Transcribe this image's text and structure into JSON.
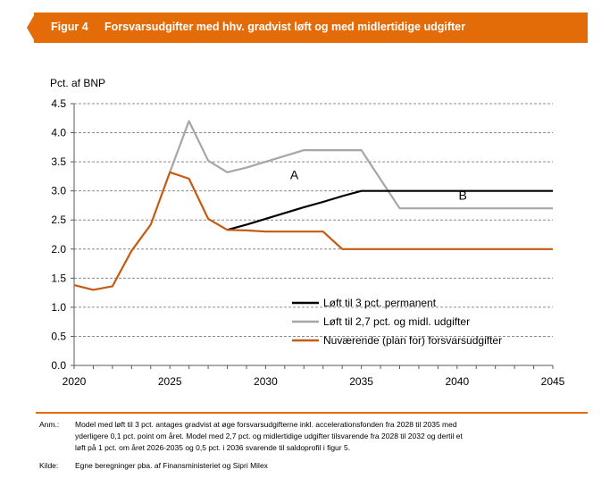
{
  "figure": {
    "label": "Figur 4",
    "title": "Forsvarsudgifter med hhv. gradvist løft og med midlertidige udgifter",
    "accent_color": "#e36c09"
  },
  "chart_data": {
    "type": "line",
    "ylabel": "Pct. af BNP",
    "xlabel": "",
    "xlim": [
      2020,
      2045
    ],
    "ylim": [
      0,
      4.5
    ],
    "x_ticks": [
      "2020",
      "2025",
      "2030",
      "2035",
      "2040",
      "2045"
    ],
    "y_ticks": [
      "0.0",
      "0.5",
      "1.0",
      "1.5",
      "2.0",
      "2.5",
      "3.0",
      "3.5",
      "4.0",
      "4.5"
    ],
    "grid": "horizontal dashed",
    "legend_position": "bottom-right",
    "series": [
      {
        "name": "Løft til 3 pct. permanent",
        "color": "#000000",
        "x": [
          2028,
          2029,
          2030,
          2031,
          2032,
          2033,
          2034,
          2035,
          2036,
          2037,
          2038,
          2039,
          2040,
          2041,
          2042,
          2043,
          2044,
          2045
        ],
        "values": [
          2.33,
          2.42,
          2.52,
          2.62,
          2.72,
          2.81,
          2.91,
          3.0,
          3.0,
          3.0,
          3.0,
          3.0,
          3.0,
          3.0,
          3.0,
          3.0,
          3.0,
          3.0
        ]
      },
      {
        "name": "Løft til 2,7 pct. og midl. udgifter",
        "color": "#a6a6a6",
        "x": [
          2025,
          2026,
          2027,
          2028,
          2029,
          2030,
          2031,
          2032,
          2033,
          2034,
          2035,
          2036,
          2037,
          2038,
          2039,
          2040,
          2041,
          2042,
          2043,
          2044,
          2045
        ],
        "values": [
          3.32,
          4.2,
          3.52,
          3.32,
          3.4,
          3.5,
          3.6,
          3.7,
          3.7,
          3.7,
          3.7,
          3.2,
          2.7,
          2.7,
          2.7,
          2.7,
          2.7,
          2.7,
          2.7,
          2.7,
          2.7
        ]
      },
      {
        "name": "Nuværende (plan for) forsvarsudgifter",
        "color": "#c55a11",
        "x": [
          2020,
          2021,
          2022,
          2023,
          2024,
          2025,
          2026,
          2027,
          2028,
          2029,
          2030,
          2031,
          2032,
          2033,
          2034,
          2035,
          2036,
          2037,
          2038,
          2039,
          2040,
          2041,
          2042,
          2043,
          2044,
          2045
        ],
        "values": [
          1.38,
          1.3,
          1.36,
          1.97,
          2.42,
          3.32,
          3.21,
          2.52,
          2.33,
          2.32,
          2.3,
          2.3,
          2.3,
          2.3,
          2.0,
          2.0,
          2.0,
          2.0,
          2.0,
          2.0,
          2.0,
          2.0,
          2.0,
          2.0,
          2.0,
          2.0
        ]
      }
    ],
    "annotations": [
      {
        "text": "A",
        "x": 2031.5,
        "y": 3.2
      },
      {
        "text": "B",
        "x": 2040.3,
        "y": 2.85
      }
    ]
  },
  "notes": {
    "anm_label": "Anm.:",
    "anm_lines": [
      "Model med løft til 3 pct. antages gradvist at øge forsvarsudgifterne inkl. accelerationsfonden fra 2028 til 2035 med",
      "yderligere 0,1 pct. point om året. Model med 2,7 pct. og midlertidige udgifter tilsvarende fra 2028 til 2032 og dertil et",
      "løft på 1 pct. om året 2026-2035 og 0,5 pct. i 2036 svarende til saldoprofil i figur 5."
    ],
    "kilde_label": "Kilde:",
    "kilde_text": "Egne beregninger pba. af Finansministeriet og Sipri Milex"
  }
}
